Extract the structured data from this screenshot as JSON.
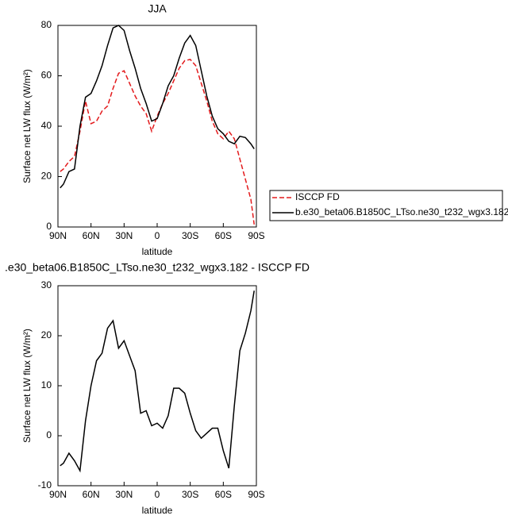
{
  "chart_data": [
    {
      "type": "line",
      "title": "JJA",
      "xlabel": "latitude",
      "ylabel": "Surface net LW flux (W/m²)",
      "x": [
        88,
        85,
        80,
        75,
        70,
        65,
        60,
        55,
        50,
        45,
        40,
        35,
        30,
        25,
        20,
        15,
        10,
        5,
        0,
        -5,
        -10,
        -15,
        -20,
        -25,
        -30,
        -35,
        -40,
        -45,
        -50,
        -55,
        -60,
        -65,
        -70,
        -75,
        -80,
        -85,
        -88
      ],
      "series": [
        {
          "name": "ISCCP FD",
          "color": "#e31a1c",
          "dashed": true,
          "values": [
            22,
            23,
            26,
            28,
            38,
            50,
            41,
            42,
            46,
            48,
            55,
            61,
            62,
            57,
            52,
            48,
            45,
            38,
            44,
            49,
            53,
            58,
            63,
            66,
            66.5,
            64,
            57,
            50,
            42,
            37,
            35,
            38,
            35,
            27,
            19,
            11,
            1
          ]
        },
        {
          "name": "b.e30_beta06.B1850C_LTso.ne30_t232_wgx3.182",
          "color": "#000000",
          "dashed": false,
          "values": [
            15.5,
            17,
            22,
            23,
            40,
            51.5,
            53,
            58,
            64,
            72,
            79,
            80,
            78,
            70,
            63,
            55,
            49,
            42,
            43,
            49,
            56,
            60,
            67,
            73,
            76,
            72,
            62,
            52,
            44,
            39,
            37,
            34,
            33,
            36,
            35.5,
            33,
            31
          ]
        }
      ],
      "xlim": [
        90,
        -90
      ],
      "xticks": [
        {
          "value": 90,
          "label": "90N"
        },
        {
          "value": 60,
          "label": "60N"
        },
        {
          "value": 30,
          "label": "30N"
        },
        0,
        {
          "value": -30,
          "label": "30S"
        },
        {
          "value": -60,
          "label": "60S"
        },
        {
          "value": -90,
          "label": "90S"
        }
      ],
      "ylim": [
        0,
        80
      ],
      "yticks": [
        0,
        20,
        40,
        60,
        80
      ],
      "legend": "right"
    },
    {
      "type": "line",
      "title": ".e30_beta06.B1850C_LTso.ne30_t232_wgx3.182 - ISCCP FD",
      "xlabel": "latitude",
      "ylabel": "Surface net LW flux (W/m²)",
      "x": [
        88,
        85,
        80,
        75,
        70,
        65,
        60,
        55,
        50,
        45,
        40,
        35,
        30,
        25,
        20,
        15,
        10,
        5,
        0,
        -5,
        -10,
        -15,
        -20,
        -25,
        -30,
        -35,
        -40,
        -45,
        -50,
        -55,
        -60,
        -65,
        -70,
        -75,
        -80,
        -85,
        -88
      ],
      "series": [
        {
          "color": "#000000",
          "dashed": false,
          "values": [
            -6,
            -5.5,
            -3.5,
            -5,
            -7,
            3,
            10,
            15,
            16.5,
            21.5,
            23,
            17.5,
            19,
            16,
            13,
            4.5,
            5,
            2,
            2.5,
            1.5,
            4,
            9.5,
            9.5,
            8.5,
            4.5,
            1,
            -0.5,
            0.5,
            1.5,
            1.5,
            -3,
            -6.5,
            6,
            17,
            20.5,
            25,
            29
          ]
        }
      ],
      "xlim": [
        90,
        -90
      ],
      "xticks": [
        {
          "value": 90,
          "label": "90N"
        },
        {
          "value": 60,
          "label": "60N"
        },
        {
          "value": 30,
          "label": "30N"
        },
        0,
        {
          "value": -30,
          "label": "30S"
        },
        {
          "value": -60,
          "label": "60S"
        },
        {
          "value": -90,
          "label": "90S"
        }
      ],
      "ylim": [
        -10,
        30
      ],
      "yticks": [
        -10,
        0,
        10,
        20,
        30
      ]
    }
  ]
}
